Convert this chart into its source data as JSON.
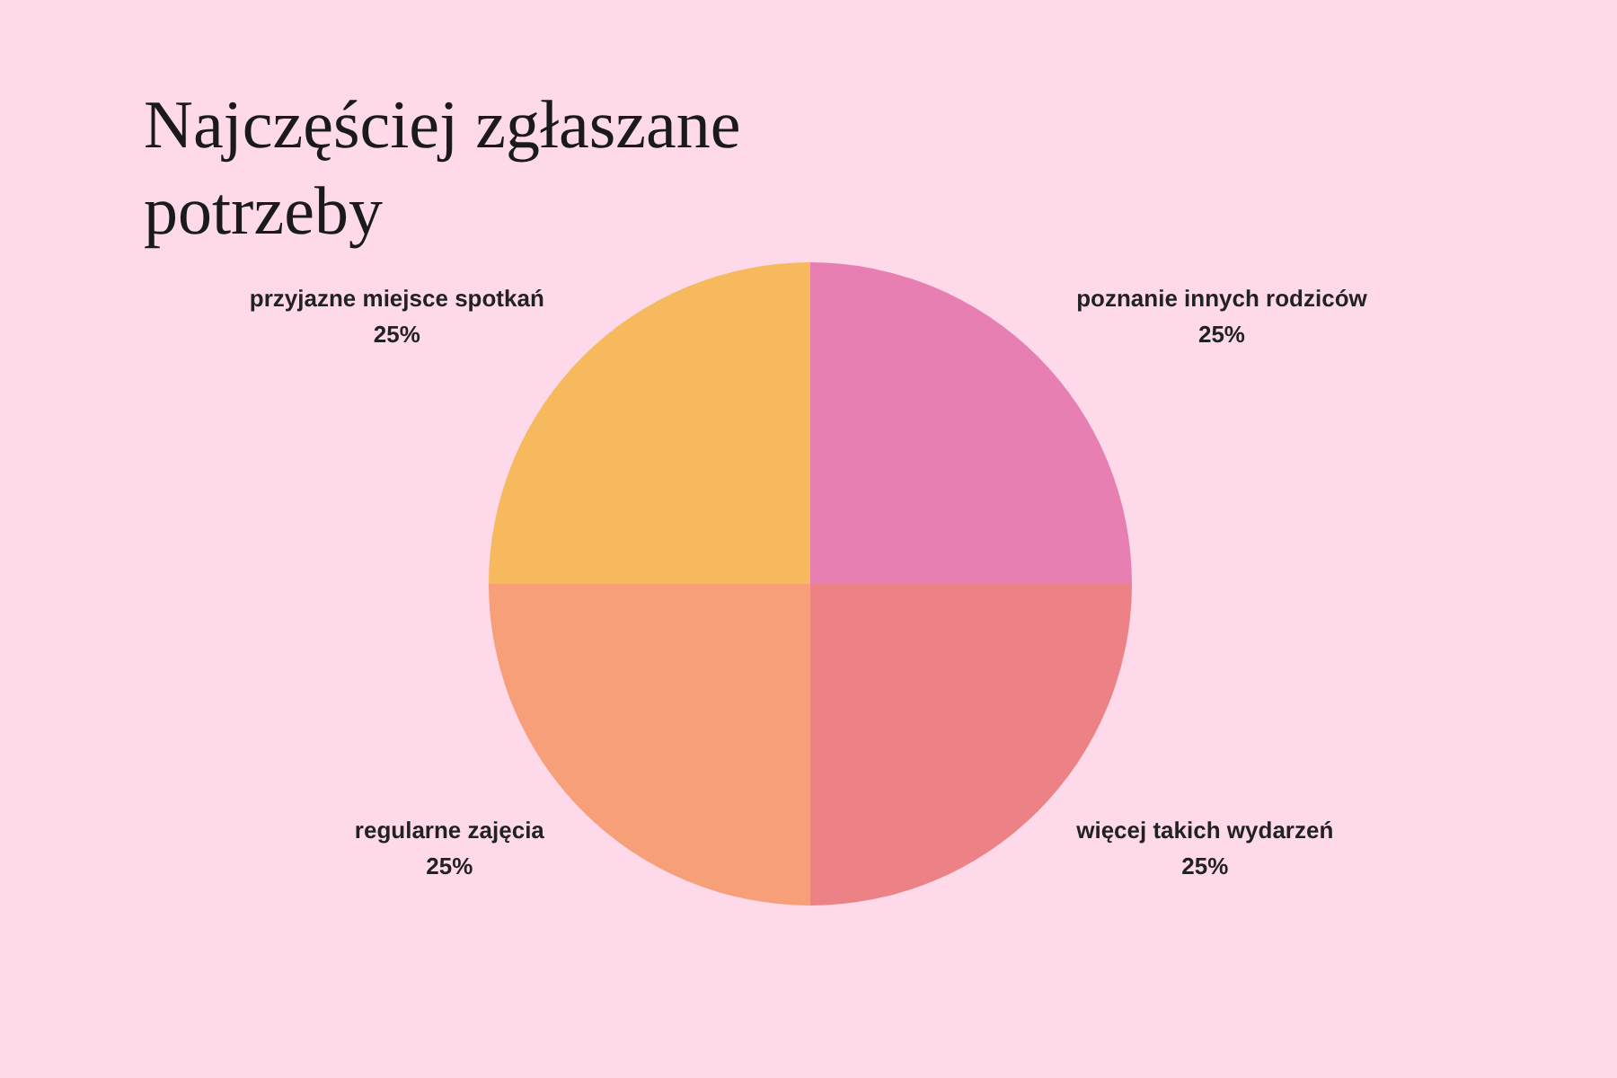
{
  "chart_data": {
    "type": "pie",
    "title": "Najczęściej zgłaszane potrzeby",
    "categories": [
      "poznanie innych rodziców",
      "więcej takich wydarzeń",
      "regularne zajęcia",
      "przyjazne miejsce spotkań"
    ],
    "values": [
      25,
      25,
      25,
      25
    ],
    "value_labels": [
      "25%",
      "25%",
      "25%",
      "25%"
    ],
    "colors": [
      "#e87fb2",
      "#ec8285",
      "#f79f78",
      "#f7b95e"
    ],
    "legend": false
  }
}
